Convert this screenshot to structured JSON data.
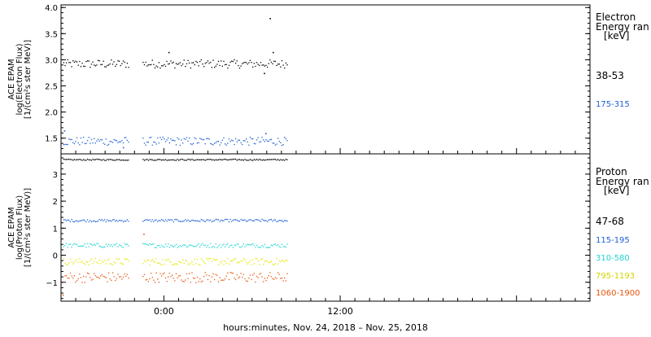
{
  "chart_data": [
    {
      "type": "scatter",
      "instrument": "ACE EPAM",
      "ylabel": [
        "ACE EPAM",
        "log(Electron Flux)",
        "[1/(cm²s ster MeV)]"
      ],
      "ylim": [
        1.2,
        4.05
      ],
      "yticks": [
        1.5,
        2.0,
        2.5,
        3.0,
        3.5,
        4.0
      ],
      "ytick_labels": [
        "1.5",
        "2.0",
        "2.5",
        "3.0",
        "3.5",
        "4.0"
      ],
      "legend_title": [
        "Electron",
        "Energy ran",
        "[keV]"
      ],
      "x_range_hours": [
        -7,
        29
      ],
      "data_gap_hours": [
        -2.4,
        -1.5
      ],
      "data_end_hours": 8.4,
      "series": [
        {
          "name": "38-53",
          "color": "#000000",
          "base": 2.93,
          "noise": 0.05,
          "outliers": [
            [
              0.3,
              3.15
            ],
            [
              7.2,
              3.8
            ],
            [
              7.4,
              3.15
            ],
            [
              6.8,
              2.75
            ]
          ]
        },
        {
          "name": "175-315",
          "color": "#1f5fd6",
          "base": 1.45,
          "noise": 0.05,
          "outliers": [
            [
              -6.8,
              1.65
            ],
            [
              -2.8,
              1.33
            ],
            [
              6.9,
              1.6
            ]
          ]
        }
      ]
    },
    {
      "type": "scatter",
      "instrument": "ACE EPAM",
      "ylabel": [
        "ACE EPAM",
        "log(Proton Flux)",
        "[1/(cm²s ster MeV)]"
      ],
      "ylim": [
        -1.7,
        3.75
      ],
      "yticks": [
        -1,
        0,
        1,
        2,
        3
      ],
      "ytick_labels": [
        "−1",
        "0",
        "1",
        "2",
        "3"
      ],
      "legend_title": [
        "Proton",
        "Energy ran",
        "[keV]"
      ],
      "x_range_hours": [
        -7,
        29
      ],
      "data_gap_hours": [
        -2.4,
        -1.5
      ],
      "data_end_hours": 8.4,
      "xticks_hours": [
        0,
        12
      ],
      "xtick_labels": [
        "0:00",
        "12:00"
      ],
      "xlabel": "hours:minutes, Nov. 24, 2018 – Nov. 25, 2018",
      "series": [
        {
          "name": "47-68",
          "color": "#000000",
          "base": 3.55,
          "noise": 0.015,
          "outliers": []
        },
        {
          "name": "115-195",
          "color": "#1f5fd6",
          "base": 1.3,
          "noise": 0.03,
          "outliers": []
        },
        {
          "name": "310-580",
          "color": "#22d3d3",
          "base": 0.38,
          "noise": 0.05,
          "outliers": []
        },
        {
          "name": "795-1193",
          "color": "#e6e600",
          "base": -0.22,
          "noise": 0.08,
          "outliers": []
        },
        {
          "name": "1060-1900",
          "color": "#e8560e",
          "base": -0.8,
          "noise": 0.12,
          "outliers": [
            [
              -6.9,
              -1.45
            ],
            [
              -1.4,
              0.8
            ]
          ]
        }
      ]
    }
  ]
}
